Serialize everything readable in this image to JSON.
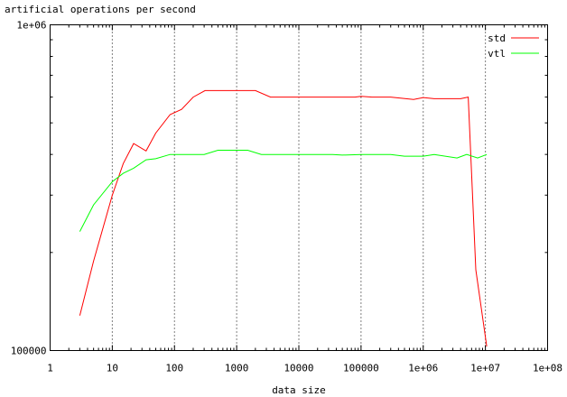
{
  "chart_data": {
    "type": "line",
    "title": "",
    "ylabel": "artificial operations per second",
    "xlabel": "data size",
    "xscale": "log",
    "yscale": "log",
    "xlim": [
      1,
      100000000
    ],
    "ylim": [
      100000,
      1000000
    ],
    "grid": "vertical dotted at each x decade",
    "legend_position": "top-right",
    "x_tick_labels": [
      "1",
      "10",
      "100",
      "1000",
      "10000",
      "100000",
      "1e+06",
      "1e+07",
      "1e+08"
    ],
    "y_tick_labels": [
      "100000",
      "1e+06"
    ],
    "series": [
      {
        "name": "std",
        "color": "#ff0000",
        "x": [
          3,
          5,
          10,
          15,
          22,
          35,
          50,
          85,
          130,
          200,
          310,
          500,
          1000,
          2000,
          3500,
          10000,
          40000,
          80000,
          100000,
          150000,
          300000,
          700000,
          1000000,
          1500000,
          4000000,
          5300000,
          7000000,
          10500000
        ],
        "y": [
          128000,
          188000,
          300000,
          375000,
          432000,
          410000,
          465000,
          530000,
          550000,
          600000,
          628000,
          628000,
          628000,
          628000,
          600000,
          600000,
          600000,
          600000,
          603000,
          600000,
          600000,
          590000,
          598000,
          593000,
          593000,
          600000,
          177000,
          103000
        ]
      },
      {
        "name": "vtl",
        "color": "#00ff00",
        "x": [
          3,
          5,
          10,
          15,
          22,
          35,
          50,
          85,
          130,
          300,
          500,
          1000,
          1500,
          2500,
          10000,
          35000,
          50000,
          100000,
          300000,
          500000,
          1000000,
          1500000,
          3500000,
          5000000,
          7500000,
          10500000
        ],
        "y": [
          232000,
          280000,
          330000,
          350000,
          363000,
          385000,
          388000,
          400000,
          400000,
          400000,
          412000,
          412000,
          412000,
          400000,
          400000,
          400000,
          398000,
          400000,
          400000,
          395000,
          395000,
          400000,
          390000,
          400000,
          390000,
          400000
        ]
      }
    ]
  }
}
